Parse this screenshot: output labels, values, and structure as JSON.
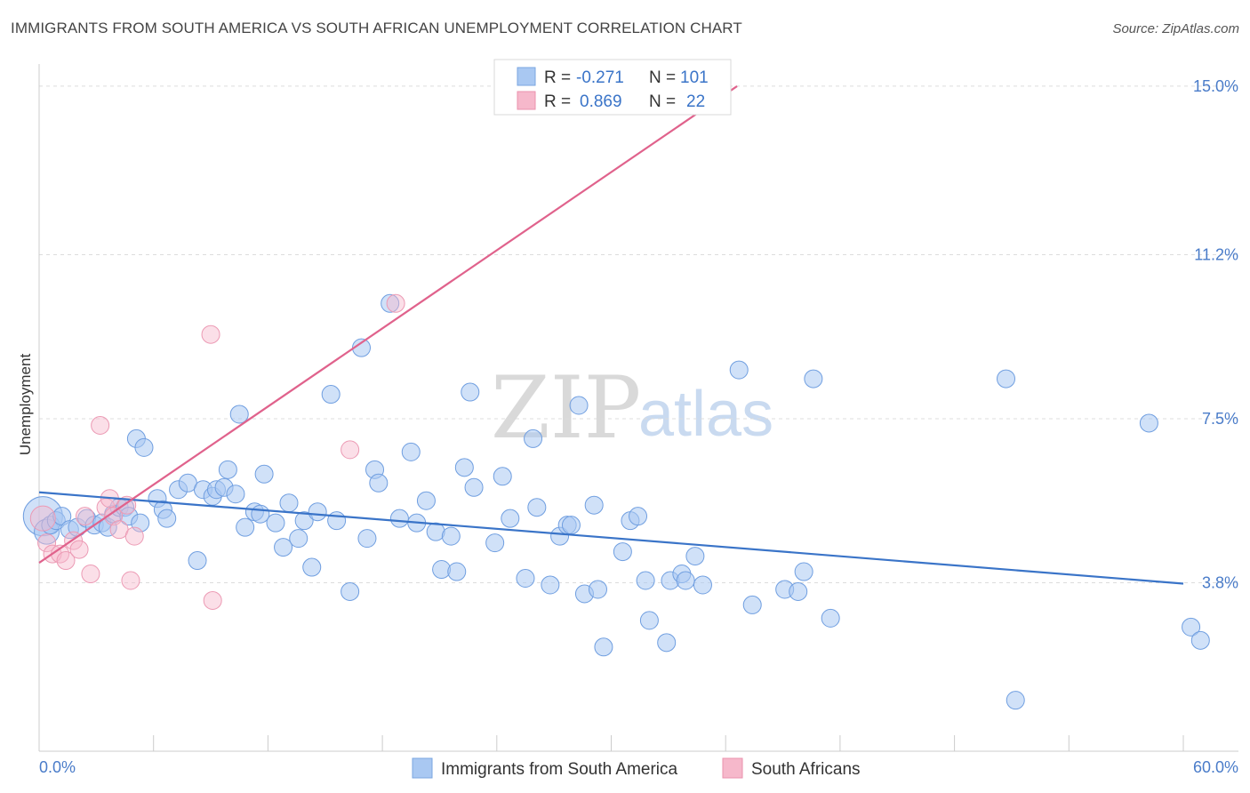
{
  "header": {
    "title": "IMMIGRANTS FROM SOUTH AMERICA VS SOUTH AFRICAN UNEMPLOYMENT CORRELATION CHART",
    "source": "Source: ZipAtlas.com"
  },
  "watermark": {
    "zip": "ZIP",
    "atlas": "atlas"
  },
  "legend": {
    "rows": [
      {
        "r_label": "R =",
        "r_value": "-0.271",
        "n_label": "N =",
        "n_value": "101",
        "color": "#a9c8f2"
      },
      {
        "r_label": "R =",
        "r_value": "0.869",
        "n_label": "N =",
        "n_value": "22",
        "color": "#f6b8cb"
      }
    ]
  },
  "bottom_legend": {
    "items": [
      {
        "label": "Immigrants from South America",
        "color": "#a9c8f2"
      },
      {
        "label": "South Africans",
        "color": "#f6b8cb"
      }
    ]
  },
  "chart_data": {
    "type": "scatter",
    "title": "IMMIGRANTS FROM SOUTH AMERICA VS SOUTH AFRICAN UNEMPLOYMENT CORRELATION CHART",
    "xlabel": "",
    "ylabel": "Unemployment",
    "xlim": [
      0,
      60
    ],
    "ylim": [
      0,
      15.5
    ],
    "x_tick_labels": [
      "0.0%",
      "60.0%"
    ],
    "y_ticks": [
      3.8,
      7.5,
      11.2,
      15.0
    ],
    "y_tick_labels": [
      "3.8%",
      "7.5%",
      "11.2%",
      "15.0%"
    ],
    "grid": true,
    "colors": {
      "blue": "#3a74c8",
      "blue_fill": "#a9c8f2",
      "pink": "#e0628c",
      "pink_fill": "#f6b8cb"
    },
    "series": [
      {
        "name": "Immigrants from South America",
        "color": "#3a74c8",
        "trend": [
          [
            0,
            5.84
          ],
          [
            60,
            3.78
          ]
        ],
        "points": [
          [
            0.2,
            5.3,
            22
          ],
          [
            0.4,
            4.95,
            14
          ],
          [
            0.6,
            5.1,
            10
          ],
          [
            0.9,
            5.2,
            10
          ],
          [
            1.2,
            5.3,
            10
          ],
          [
            1.6,
            5.0,
            10
          ],
          [
            2.0,
            5.05,
            10
          ],
          [
            2.5,
            5.25,
            10
          ],
          [
            2.9,
            5.1,
            10
          ],
          [
            3.3,
            5.15,
            10
          ],
          [
            3.6,
            5.05,
            10
          ],
          [
            3.9,
            5.35,
            10
          ],
          [
            4.2,
            5.5,
            10
          ],
          [
            4.5,
            5.5,
            10
          ],
          [
            4.7,
            5.3,
            10
          ],
          [
            5.1,
            7.05,
            10
          ],
          [
            5.3,
            5.15,
            10
          ],
          [
            5.5,
            6.85,
            10
          ],
          [
            6.2,
            5.7,
            10
          ],
          [
            6.5,
            5.45,
            10
          ],
          [
            6.7,
            5.25,
            10
          ],
          [
            7.3,
            5.9,
            10
          ],
          [
            7.8,
            6.05,
            10
          ],
          [
            8.3,
            4.3,
            10
          ],
          [
            8.6,
            5.9,
            10
          ],
          [
            9.1,
            5.75,
            10
          ],
          [
            9.3,
            5.9,
            10
          ],
          [
            9.7,
            5.95,
            10
          ],
          [
            9.9,
            6.35,
            10
          ],
          [
            10.3,
            5.8,
            10
          ],
          [
            10.5,
            7.6,
            10
          ],
          [
            10.8,
            5.05,
            10
          ],
          [
            11.3,
            5.4,
            10
          ],
          [
            11.6,
            5.35,
            10
          ],
          [
            11.8,
            6.25,
            10
          ],
          [
            12.4,
            5.15,
            10
          ],
          [
            12.8,
            4.6,
            10
          ],
          [
            13.1,
            5.6,
            10
          ],
          [
            13.6,
            4.8,
            10
          ],
          [
            13.9,
            5.2,
            10
          ],
          [
            14.3,
            4.15,
            10
          ],
          [
            14.6,
            5.4,
            10
          ],
          [
            15.3,
            8.05,
            10
          ],
          [
            15.6,
            5.2,
            10
          ],
          [
            16.3,
            3.6,
            10
          ],
          [
            16.9,
            9.1,
            10
          ],
          [
            17.2,
            4.8,
            10
          ],
          [
            17.6,
            6.35,
            10
          ],
          [
            17.8,
            6.05,
            10
          ],
          [
            18.4,
            10.1,
            10
          ],
          [
            18.9,
            5.25,
            10
          ],
          [
            19.5,
            6.75,
            10
          ],
          [
            19.8,
            5.15,
            10
          ],
          [
            20.3,
            5.65,
            10
          ],
          [
            20.8,
            4.95,
            10
          ],
          [
            21.1,
            4.1,
            10
          ],
          [
            21.6,
            4.85,
            10
          ],
          [
            21.9,
            4.05,
            10
          ],
          [
            22.3,
            6.4,
            10
          ],
          [
            22.6,
            8.1,
            10
          ],
          [
            22.8,
            5.95,
            10
          ],
          [
            23.9,
            4.7,
            10
          ],
          [
            24.3,
            6.2,
            10
          ],
          [
            24.7,
            5.25,
            10
          ],
          [
            25.5,
            3.9,
            10
          ],
          [
            25.9,
            7.05,
            10
          ],
          [
            26.1,
            5.5,
            10
          ],
          [
            26.8,
            3.75,
            10
          ],
          [
            27.3,
            4.85,
            10
          ],
          [
            27.7,
            5.1,
            10
          ],
          [
            27.9,
            5.1,
            10
          ],
          [
            28.3,
            7.8,
            10
          ],
          [
            28.6,
            3.55,
            10
          ],
          [
            29.1,
            5.55,
            10
          ],
          [
            29.3,
            3.65,
            10
          ],
          [
            29.6,
            2.35,
            10
          ],
          [
            30.6,
            4.5,
            10
          ],
          [
            31.0,
            5.2,
            10
          ],
          [
            31.4,
            5.3,
            10
          ],
          [
            31.8,
            3.85,
            10
          ],
          [
            32.0,
            2.95,
            10
          ],
          [
            32.9,
            2.45,
            10
          ],
          [
            33.1,
            3.85,
            10
          ],
          [
            33.7,
            4.0,
            10
          ],
          [
            33.9,
            3.85,
            10
          ],
          [
            34.4,
            4.4,
            10
          ],
          [
            34.8,
            3.75,
            10
          ],
          [
            36.7,
            8.6,
            10
          ],
          [
            37.4,
            3.3,
            10
          ],
          [
            39.1,
            3.65,
            10
          ],
          [
            39.8,
            3.6,
            10
          ],
          [
            40.1,
            4.05,
            10
          ],
          [
            40.6,
            8.4,
            10
          ],
          [
            41.5,
            3.0,
            10
          ],
          [
            50.7,
            8.4,
            10
          ],
          [
            51.2,
            1.15,
            10
          ],
          [
            58.2,
            7.4,
            10
          ],
          [
            60.4,
            2.8,
            10
          ],
          [
            60.9,
            2.5,
            10
          ]
        ]
      },
      {
        "name": "South Africans",
        "color": "#e0628c",
        "trend": [
          [
            0,
            4.25
          ],
          [
            36.6,
            15.0
          ]
        ],
        "points": [
          [
            0.2,
            5.25,
            14
          ],
          [
            0.4,
            4.7,
            10
          ],
          [
            0.7,
            4.45,
            10
          ],
          [
            1.1,
            4.45,
            10
          ],
          [
            1.4,
            4.3,
            10
          ],
          [
            1.8,
            4.75,
            10
          ],
          [
            2.1,
            4.55,
            10
          ],
          [
            2.4,
            5.3,
            10
          ],
          [
            2.7,
            4.0,
            10
          ],
          [
            3.2,
            7.35,
            10
          ],
          [
            3.5,
            5.5,
            10
          ],
          [
            3.7,
            5.7,
            10
          ],
          [
            3.9,
            5.3,
            10
          ],
          [
            4.2,
            5.0,
            10
          ],
          [
            4.6,
            5.55,
            10
          ],
          [
            4.8,
            3.85,
            10
          ],
          [
            5.0,
            4.85,
            10
          ],
          [
            9.0,
            9.4,
            10
          ],
          [
            9.1,
            3.4,
            10
          ],
          [
            16.3,
            6.8,
            10
          ],
          [
            18.7,
            10.1,
            10
          ]
        ]
      }
    ]
  }
}
